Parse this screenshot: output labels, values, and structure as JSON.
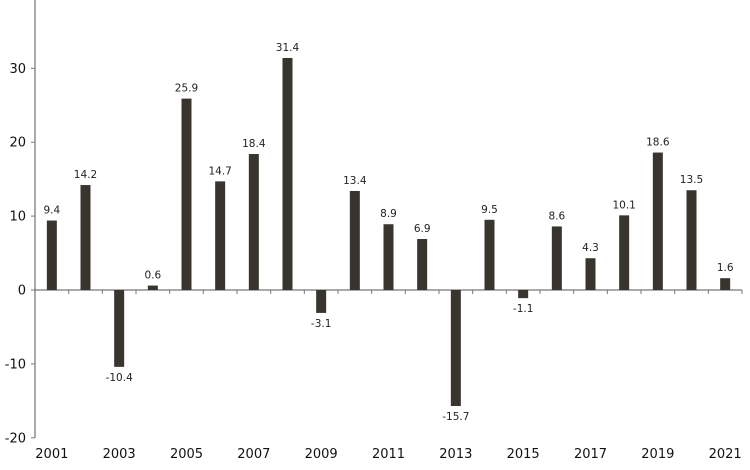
{
  "chart_data": {
    "type": "bar",
    "title": "",
    "xlabel": "",
    "ylabel": "",
    "categories": [
      "2001",
      "2002",
      "2003",
      "2004",
      "2005",
      "2006",
      "2007",
      "2008",
      "2009",
      "2010",
      "2011",
      "2012",
      "2013",
      "2014",
      "2015",
      "2016",
      "2017",
      "2018",
      "2019",
      "2020",
      "2021"
    ],
    "values": [
      9.4,
      14.2,
      -10.4,
      0.6,
      25.9,
      14.7,
      18.4,
      31.4,
      -3.1,
      13.4,
      8.9,
      6.9,
      -15.7,
      9.5,
      -1.1,
      8.6,
      4.3,
      10.1,
      18.6,
      13.5,
      1.6
    ],
    "data_labels": [
      "9.4",
      "14.2",
      "-10.4",
      "0.6",
      "25.9",
      "14.7",
      "18.4",
      "31.4",
      "-3.1",
      "13.4",
      "8.9",
      "6.9",
      "-15.7",
      "9.5",
      "-1.1",
      "8.6",
      "4.3",
      "10.1",
      "18.6",
      "13.5",
      "1.6"
    ],
    "ylim": [
      -20,
      40
    ],
    "yticks": [
      -20,
      -10,
      0,
      10,
      20,
      30
    ],
    "ytick_labels": [
      "-20",
      "-10",
      "0",
      "10",
      "20",
      "30"
    ],
    "xtick_labels": [
      "2001",
      "2003",
      "2005",
      "2007",
      "2009",
      "2011",
      "2013",
      "2015",
      "2017",
      "2019",
      "2021"
    ],
    "grid": false,
    "legend": "none",
    "bar_color": "#38352f"
  }
}
